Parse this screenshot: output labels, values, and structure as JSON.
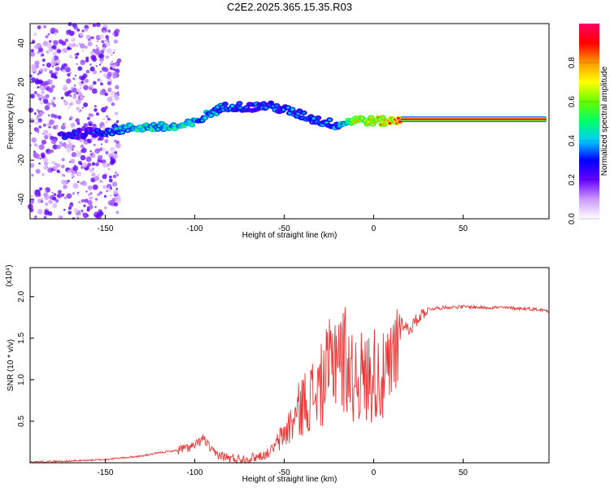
{
  "figure": {
    "title": "C2E2.2025.365.15.35.R03"
  },
  "colorbar": {
    "label": "Normalized spectral amplitude",
    "ticks": [
      "0.0",
      "0.2",
      "0.4",
      "0.6",
      "0.8"
    ],
    "tick_values": [
      0.0,
      0.2,
      0.4,
      0.6,
      0.8
    ],
    "range": [
      0,
      1
    ],
    "colormap": [
      "#ffffff",
      "#cc99ff",
      "#6600ff",
      "#0000ff",
      "#00ccff",
      "#00ff66",
      "#66ff00",
      "#ffff00",
      "#ff9900",
      "#ff0000",
      "#ff0066"
    ]
  },
  "chart_data": [
    {
      "type": "heatmap",
      "xlabel": "Height of straight line (km)",
      "ylabel": "Frequency (Hz)",
      "xlim": [
        -192,
        98
      ],
      "ylim": [
        -50,
        50
      ],
      "xticks": [
        -150,
        -100,
        -50,
        0,
        50
      ],
      "xtick_labels": [
        "-150",
        "-100",
        "-50",
        "0",
        "50"
      ],
      "yticks": [
        -40,
        -20,
        0,
        20,
        40
      ],
      "ytick_labels": [
        "-40",
        "-20",
        "0",
        "20",
        "40"
      ],
      "ridge": {
        "x": [
          -170,
          -150,
          -130,
          -110,
          -100,
          -90,
          -80,
          -70,
          -60,
          -50,
          -40,
          -30,
          -20,
          -10,
          0,
          10,
          20,
          98
        ],
        "frequency": [
          -7,
          -5,
          -3,
          -3,
          -1,
          5,
          8,
          7,
          8,
          6,
          3,
          0,
          -2,
          1,
          0,
          0,
          1,
          1
        ],
        "amplitude": [
          0.25,
          0.3,
          0.4,
          0.45,
          0.4,
          0.35,
          0.3,
          0.3,
          0.3,
          0.3,
          0.3,
          0.3,
          0.35,
          0.6,
          0.65,
          0.7,
          0.9,
          0.95
        ]
      }
    },
    {
      "type": "line",
      "xlabel": "Height of straight line (km)",
      "ylabel": "SNR (10 * v/v)",
      "multiplier": "(x10⁴)",
      "color": "#ee3333",
      "xlim": [
        -192,
        98
      ],
      "ylim": [
        0,
        2.35
      ],
      "xticks": [
        -150,
        -100,
        -50,
        0,
        50
      ],
      "xtick_labels": [
        "-150",
        "-100",
        "-50",
        "0",
        "50"
      ],
      "yticks": [
        0.5,
        1.0,
        1.5,
        2.0
      ],
      "ytick_labels": [
        "0.5",
        "1.0",
        "1.5",
        "2.0"
      ],
      "x": [
        -192,
        -170,
        -150,
        -130,
        -120,
        -110,
        -100,
        -95,
        -90,
        -80,
        -70,
        -60,
        -55,
        -50,
        -45,
        -40,
        -35,
        -30,
        -25,
        -22,
        -20,
        -18,
        -15,
        -12,
        -10,
        -5,
        0,
        5,
        10,
        12,
        15,
        20,
        25,
        30,
        40,
        50,
        60,
        70,
        80,
        90,
        98
      ],
      "y": [
        0.01,
        0.02,
        0.04,
        0.08,
        0.12,
        0.15,
        0.2,
        0.3,
        0.12,
        0.05,
        0.05,
        0.1,
        0.2,
        0.35,
        0.5,
        0.7,
        0.8,
        0.9,
        1.1,
        1.3,
        1.5,
        1.2,
        1.3,
        1.0,
        1.1,
        1.0,
        1.1,
        1.0,
        1.1,
        1.3,
        1.7,
        1.6,
        1.75,
        1.85,
        1.87,
        1.88,
        1.87,
        1.87,
        1.86,
        1.85,
        1.83
      ]
    }
  ]
}
